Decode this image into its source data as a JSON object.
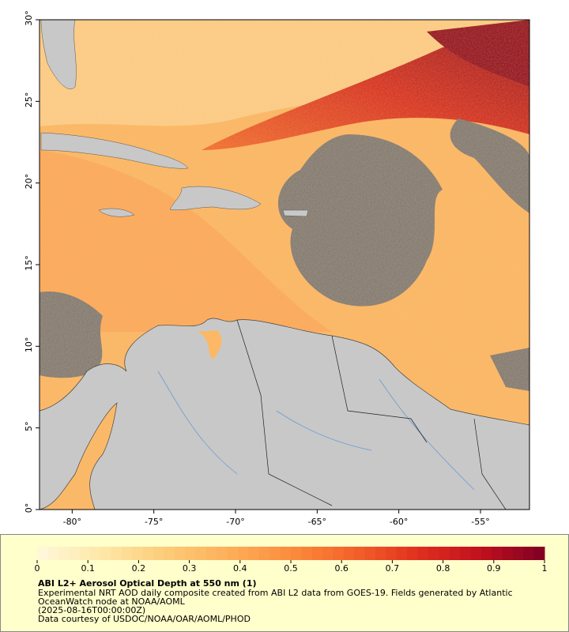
{
  "map": {
    "xlim": [
      -82,
      -52
    ],
    "ylim": [
      0,
      30
    ],
    "xticks": [
      {
        "value": -80,
        "label": "-80°"
      },
      {
        "value": -75,
        "label": "-75°"
      },
      {
        "value": -70,
        "label": "-70°"
      },
      {
        "value": -65,
        "label": "-65°"
      },
      {
        "value": -60,
        "label": "-60°"
      },
      {
        "value": -55,
        "label": "-55°"
      }
    ],
    "yticks": [
      {
        "value": 0,
        "label": "0°"
      },
      {
        "value": 5,
        "label": "5°"
      },
      {
        "value": 10,
        "label": "10°"
      },
      {
        "value": 15,
        "label": "15°"
      },
      {
        "value": 20,
        "label": "20°"
      },
      {
        "value": 25,
        "label": "25°"
      },
      {
        "value": 30,
        "label": "30°"
      }
    ]
  },
  "colorbar": {
    "range": [
      0,
      1
    ],
    "ticks": [
      0,
      0.1,
      0.2,
      0.3,
      0.4,
      0.5,
      0.6,
      0.7,
      0.8,
      0.9,
      1
    ],
    "colors": [
      "#fff8dc",
      "#fee8a8",
      "#fdcc7a",
      "#fdb05a",
      "#fc8c3c",
      "#f4622a",
      "#e0301e",
      "#c0101e",
      "#7f0023"
    ]
  },
  "caption": {
    "title": "ABI L2+ Aerosol Optical Depth at 550 nm (1)",
    "lines": [
      "Experimental NRT AOD daily composite created from ABI L2 data from GOES-19. Fields generated by Atlantic",
      "OceanWatch node at NOAA/AOML",
      "(2025-08-16T00:00:00Z)",
      "Data courtesy of USDOC/NOAA/OAR/AOML/PHOD"
    ]
  }
}
